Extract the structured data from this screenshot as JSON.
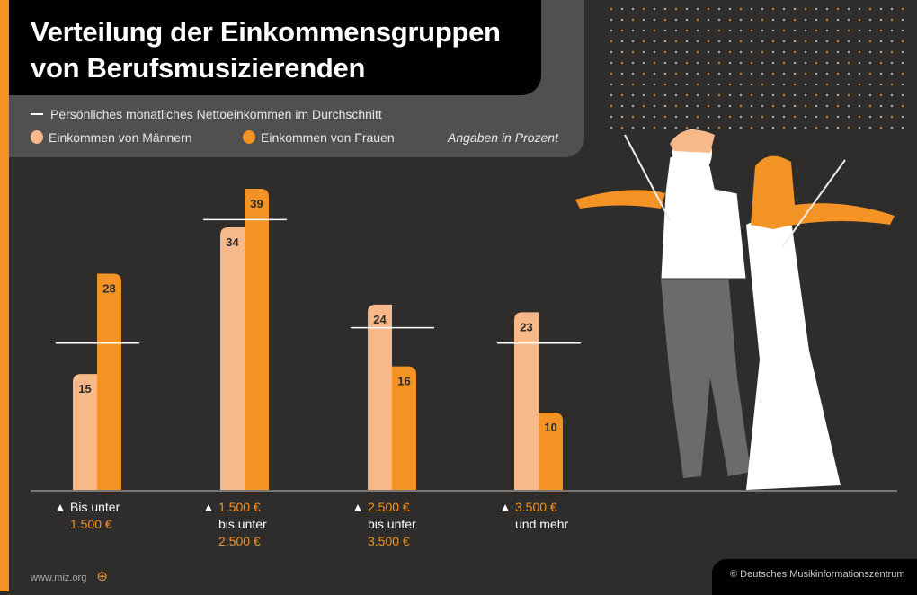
{
  "title_line1": "Verteilung der Einkommensgruppen",
  "title_line2": "von Berufsmusizierenden",
  "footer": {
    "url": "www.miz.org",
    "copyright": "© Deutsches Musikinformationszentrum"
  },
  "colors": {
    "men": "#f7b98a",
    "women": "#f39325",
    "avg": "#ffffff",
    "background": "#2e2d2c"
  },
  "chart_data": {
    "type": "bar",
    "title": "Verteilung der Einkommensgruppen von Berufsmusizierenden",
    "unit_note": "Angaben in Prozent",
    "legend": {
      "avg": "Persönliches monatliches Nettoeinkommen im Durchschnitt",
      "men": "Einkommen von Männern",
      "women": "Einkommen von Frauen"
    },
    "categories": [
      {
        "line1": "Bis unter",
        "line2": "1.500 €",
        "line3": ""
      },
      {
        "line1": "1.500 €",
        "line2": "bis unter",
        "line3": "2.500 €"
      },
      {
        "line1": "2.500 €",
        "line2": "bis unter",
        "line3": "3.500 €"
      },
      {
        "line1": "3.500 €",
        "line2": "und mehr",
        "line3": ""
      }
    ],
    "series": [
      {
        "name": "Einkommen von Männern",
        "values": [
          15,
          34,
          24,
          23
        ]
      },
      {
        "name": "Einkommen von Frauen",
        "values": [
          28,
          39,
          16,
          10
        ]
      },
      {
        "name": "Persönliches monatliches Nettoeinkommen im Durchschnitt",
        "values": [
          19,
          35,
          21,
          19
        ]
      }
    ],
    "ylim": [
      0,
      39
    ]
  }
}
